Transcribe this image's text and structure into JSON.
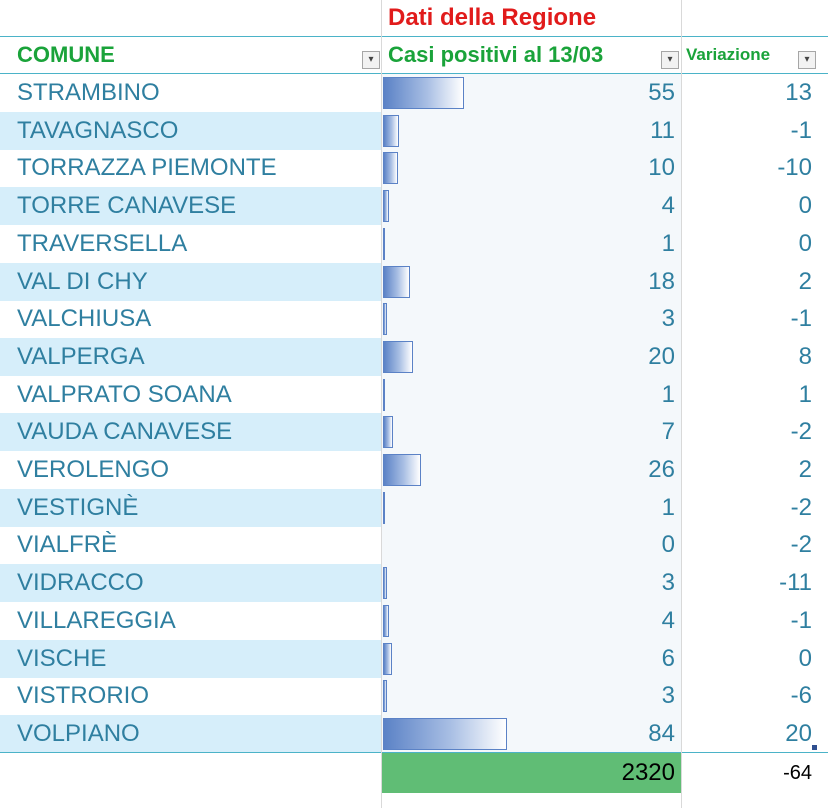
{
  "header": {
    "section_title": "Dati della Regione",
    "col_comune": "COMUNE",
    "col_casi": "Casi positivi al 13/03",
    "col_variazione": "Variazione"
  },
  "rows": [
    {
      "comune": "STRAMBINO",
      "casi": 55,
      "variazione": 13
    },
    {
      "comune": "TAVAGNASCO",
      "casi": 11,
      "variazione": -1
    },
    {
      "comune": "TORRAZZA PIEMONTE",
      "casi": 10,
      "variazione": -10
    },
    {
      "comune": "TORRE CANAVESE",
      "casi": 4,
      "variazione": 0
    },
    {
      "comune": "TRAVERSELLA",
      "casi": 1,
      "variazione": 0
    },
    {
      "comune": "VAL DI CHY",
      "casi": 18,
      "variazione": 2
    },
    {
      "comune": "VALCHIUSA",
      "casi": 3,
      "variazione": -1
    },
    {
      "comune": "VALPERGA",
      "casi": 20,
      "variazione": 8
    },
    {
      "comune": "VALPRATO SOANA",
      "casi": 1,
      "variazione": 1
    },
    {
      "comune": "VAUDA CANAVESE",
      "casi": 7,
      "variazione": -2
    },
    {
      "comune": "VEROLENGO",
      "casi": 26,
      "variazione": 2
    },
    {
      "comune": "VESTIGNÈ",
      "casi": 1,
      "variazione": -2
    },
    {
      "comune": "VIALFRÈ",
      "casi": 0,
      "variazione": -2
    },
    {
      "comune": "VIDRACCO",
      "casi": 3,
      "variazione": -11
    },
    {
      "comune": "VILLAREGGIA",
      "casi": 4,
      "variazione": -1
    },
    {
      "comune": "VISCHE",
      "casi": 6,
      "variazione": 0
    },
    {
      "comune": "VISTRORIO",
      "casi": 3,
      "variazione": -6
    },
    {
      "comune": "VOLPIANO",
      "casi": 84,
      "variazione": 20
    }
  ],
  "totals": {
    "casi": 2320,
    "variazione": -64
  },
  "colors": {
    "title_red": "#e11b1b",
    "header_green": "#1aa33a",
    "text_blue": "#2f7fa0",
    "band_blue": "#d6eefa",
    "databar_blue": "#5b82c6",
    "total_green": "#60bd75"
  },
  "icons": {
    "filter": "filter-dropdown-icon",
    "sort": "sort-filter-icon"
  }
}
